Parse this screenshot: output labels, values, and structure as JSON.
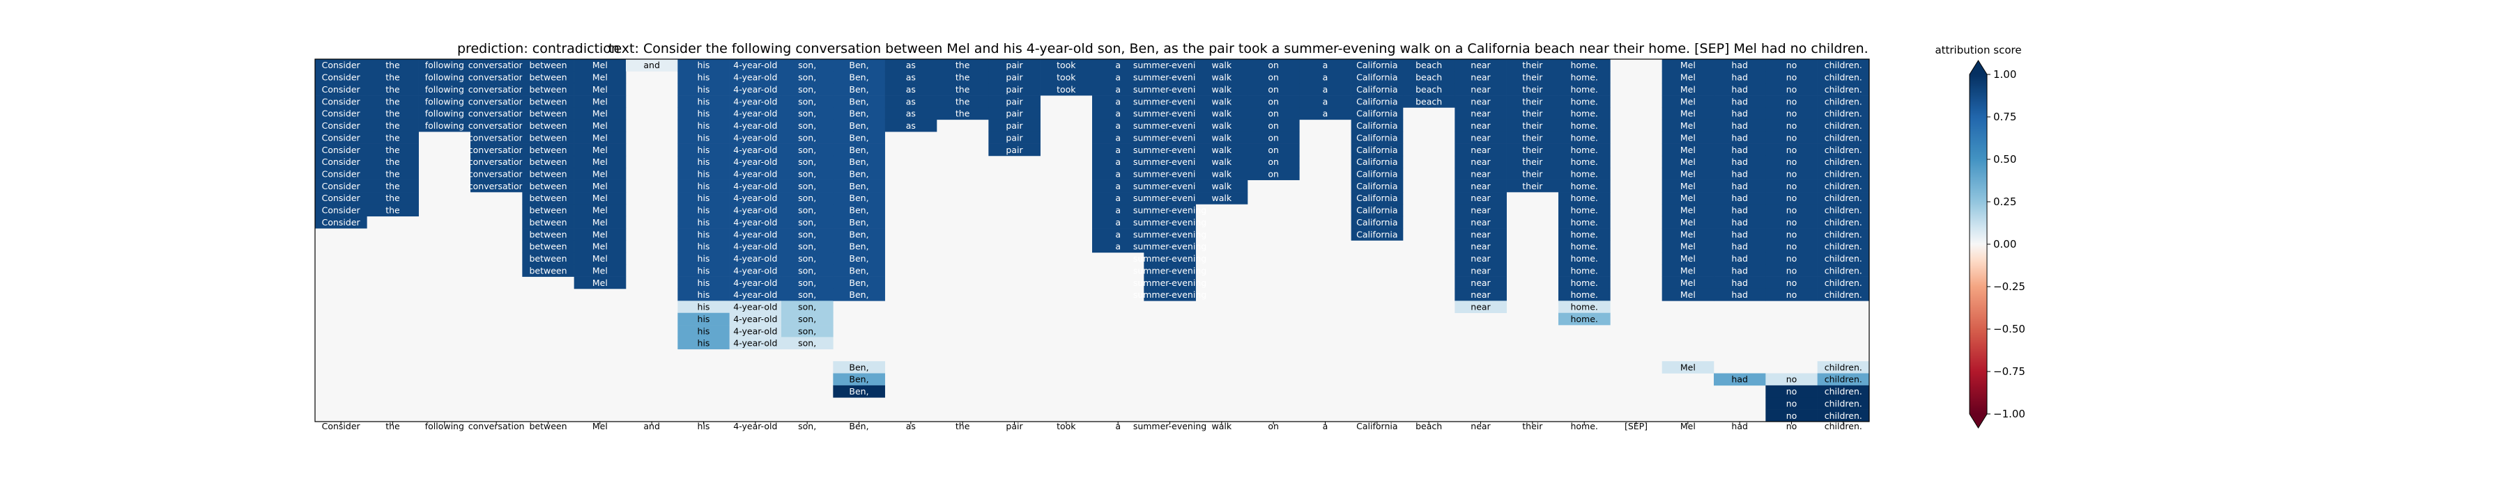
{
  "chart_data": {
    "type": "heatmap",
    "title_prediction": "prediction:  contradiction",
    "title_text": "text:  Consider the following conversation between Mel and his 4-year-old son, Ben, as the pair took a summer-evening walk on a California beach near their home. [SEP] Mel had no children.",
    "tokens": [
      "Consider",
      "the",
      "following",
      "conversation",
      "between",
      "Mel",
      "and",
      "his",
      "4-year-old",
      "son,",
      "Ben,",
      "as",
      "the",
      "pair",
      "took",
      "a",
      "summer-evening",
      "walk",
      "on",
      "a",
      "California",
      "beach",
      "near",
      "their",
      "home.",
      "[SEP]",
      "Mel",
      "had",
      "no",
      "children."
    ],
    "column_runs": [
      [
        [
          0,
          14,
          0.9
        ]
      ],
      [
        [
          0,
          13,
          0.9
        ]
      ],
      [
        [
          0,
          6,
          0.9
        ]
      ],
      [
        [
          0,
          11,
          0.9
        ]
      ],
      [
        [
          0,
          18,
          0.9
        ]
      ],
      [
        [
          0,
          19,
          0.9
        ]
      ],
      [
        [
          0,
          1,
          0.05
        ]
      ],
      [
        [
          0,
          20,
          0.85
        ],
        [
          20,
          21,
          0.1
        ],
        [
          21,
          24,
          0.4
        ]
      ],
      [
        [
          0,
          20,
          0.85
        ],
        [
          20,
          24,
          0.1
        ]
      ],
      [
        [
          0,
          20,
          0.85
        ],
        [
          20,
          23,
          0.2
        ],
        [
          23,
          24,
          0.1
        ]
      ],
      [
        [
          0,
          20,
          0.85
        ],
        [
          25,
          26,
          0.1
        ],
        [
          26,
          27,
          0.4
        ],
        [
          27,
          28,
          1.0
        ]
      ],
      [
        [
          0,
          6,
          0.9
        ]
      ],
      [
        [
          0,
          5,
          0.9
        ]
      ],
      [
        [
          0,
          8,
          0.9
        ]
      ],
      [
        [
          0,
          3,
          0.9
        ]
      ],
      [
        [
          0,
          16,
          0.9
        ]
      ],
      [
        [
          0,
          20,
          0.9
        ]
      ],
      [
        [
          0,
          12,
          0.9
        ]
      ],
      [
        [
          0,
          10,
          0.9
        ]
      ],
      [
        [
          0,
          5,
          0.9
        ]
      ],
      [
        [
          0,
          15,
          0.9
        ]
      ],
      [
        [
          0,
          4,
          0.9
        ]
      ],
      [
        [
          0,
          20,
          0.9
        ],
        [
          20,
          21,
          0.1
        ]
      ],
      [
        [
          0,
          11,
          0.9
        ]
      ],
      [
        [
          0,
          20,
          0.9
        ],
        [
          20,
          21,
          0.1
        ],
        [
          21,
          22,
          0.3
        ]
      ],
      [],
      [
        [
          0,
          20,
          0.9
        ],
        [
          25,
          26,
          0.1
        ]
      ],
      [
        [
          0,
          20,
          0.9
        ],
        [
          26,
          27,
          0.4
        ]
      ],
      [
        [
          0,
          20,
          0.9
        ],
        [
          26,
          27,
          0.1
        ],
        [
          27,
          30,
          1.0
        ]
      ],
      [
        [
          0,
          20,
          0.9
        ],
        [
          25,
          26,
          0.1
        ],
        [
          26,
          27,
          0.4
        ],
        [
          27,
          30,
          1.0
        ]
      ]
    ],
    "n_rows": 30,
    "background_value": 0.0,
    "colorbar": {
      "label": "attribution score",
      "min": -1.0,
      "max": 1.0,
      "ticks": [
        "1.00",
        "0.75",
        "0.50",
        "0.25",
        "0.00",
        "−0.25",
        "−0.50",
        "−0.75",
        "−1.00"
      ],
      "tick_values": [
        1.0,
        0.75,
        0.5,
        0.25,
        0.0,
        -0.25,
        -0.5,
        -0.75,
        -1.0
      ],
      "colormap": "RdBu",
      "extend": "both"
    },
    "colors": {
      "max": "#053061",
      "mid": "#f7f7f7",
      "min": "#67001f"
    }
  }
}
